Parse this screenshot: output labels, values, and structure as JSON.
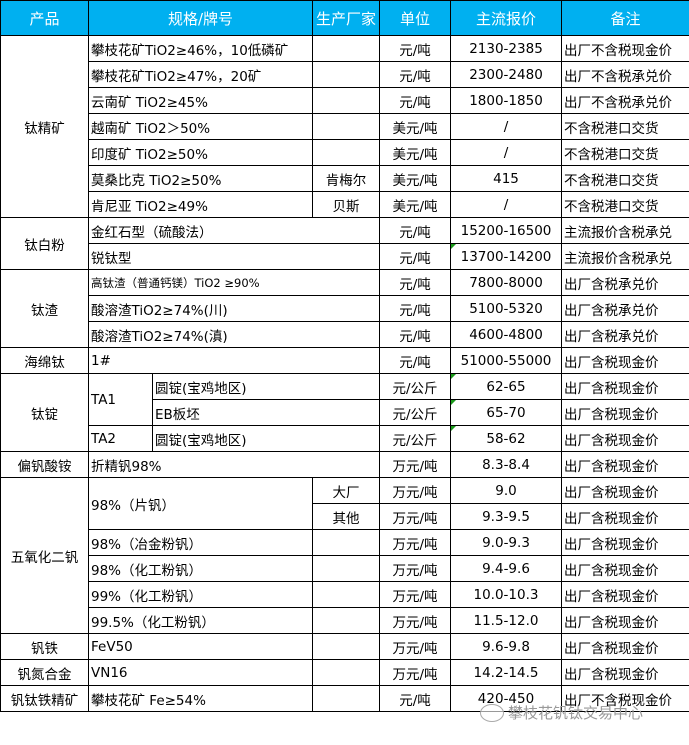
{
  "header": [
    "产品",
    "规格/牌号",
    "生产厂家",
    "单位",
    "主流报价",
    "备注"
  ],
  "groups": [
    {
      "product": "钛精矿",
      "layout": "spec2",
      "rows": [
        {
          "spec": "攀枝花矿TiO2≥46%，10低磷矿",
          "maker": "",
          "unit": "元/吨",
          "price": "2130-2385",
          "note": "出厂不含税现金价"
        },
        {
          "spec": "攀枝花矿TiO2≥47%，20矿",
          "maker": "",
          "unit": "元/吨",
          "price": "2300-2480",
          "note": "出厂不含税承兑价"
        },
        {
          "spec": "云南矿 TiO2≥45%",
          "maker": "",
          "unit": "元/吨",
          "price": "1800-1850",
          "note": "出厂不含税承兑价"
        },
        {
          "spec": "越南矿 TiO2＞50%",
          "maker": "",
          "unit": "美元/吨",
          "price": "/",
          "note": "不含税港口交货"
        },
        {
          "spec": "印度矿 TiO2≥50%",
          "maker": "",
          "unit": "美元/吨",
          "price": "/",
          "note": "不含税港口交货"
        },
        {
          "spec": "莫桑比克 TiO2≥50%",
          "maker": "肯梅尔",
          "unit": "美元/吨",
          "price": "415",
          "note": "不含税港口交货"
        },
        {
          "spec": "肯尼亚 TiO2≥49%",
          "maker": "贝斯",
          "unit": "美元/吨",
          "price": "/",
          "note": "不含税港口交货"
        }
      ]
    },
    {
      "product": "钛白粉",
      "layout": "spec3",
      "rows": [
        {
          "spec": "金红石型（硫酸法）",
          "unit": "元/吨",
          "price": "15200-16500",
          "note": "主流报价含税承兑"
        },
        {
          "spec": "锐钛型",
          "unit": "元/吨",
          "price": "13700-14200",
          "note": "主流报价含税承兑",
          "flag": true
        }
      ]
    },
    {
      "product": "钛渣",
      "layout": "spec3",
      "rows": [
        {
          "spec": "高钛渣（普通钙镁）TiO2 ≥90%",
          "small": true,
          "unit": "元/吨",
          "price": "7800-8000",
          "note": "出厂含税承兑价"
        },
        {
          "spec": "酸溶渣TiO2≥74%(川)",
          "unit": "元/吨",
          "price": "5100-5320",
          "note": "出厂含税承兑价"
        },
        {
          "spec": "酸溶渣TiO2≥74%(滇)",
          "unit": "元/吨",
          "price": "4600-4800",
          "note": "出厂含税承兑价"
        }
      ]
    },
    {
      "product": "海绵钛",
      "layout": "spec3",
      "rows": [
        {
          "spec": "1#",
          "unit": "元/吨",
          "price": "51000-55000",
          "note": "出厂含税现金价"
        }
      ]
    },
    {
      "product": "钛锭",
      "layout": "ingot",
      "rows": [
        {
          "grade": "TA1",
          "grade_span": 2,
          "spec": "圆锭(宝鸡地区)",
          "unit": "元/公斤",
          "price": "62-65",
          "note": "出厂含税现金价",
          "flag": true
        },
        {
          "spec": "EB板坯",
          "unit": "元/公斤",
          "price": "65-70",
          "note": "出厂含税现金价",
          "flag": true
        },
        {
          "grade": "TA2",
          "grade_span": 1,
          "spec": "圆锭(宝鸡地区)",
          "unit": "元/公斤",
          "price": "58-62",
          "note": "出厂含税现金价",
          "flag": true
        }
      ]
    },
    {
      "product": "偏钒酸铵",
      "layout": "spec3",
      "rows": [
        {
          "spec": "折精钒98%",
          "unit": "万元/吨",
          "price": "8.3-8.4",
          "note": "出厂含税现金价"
        }
      ]
    },
    {
      "product": "五氧化二钒",
      "layout": "spec2",
      "rows": [
        {
          "spec": "98%（片钒）",
          "spec_span": 2,
          "maker": "大厂",
          "unit": "万元/吨",
          "price": "9.0",
          "note": "出厂含税现金价"
        },
        {
          "maker": "其他",
          "unit": "万元/吨",
          "price": "9.3-9.5",
          "note": "出厂含税现金价"
        },
        {
          "spec": "98%（冶金粉钒）",
          "maker": "",
          "unit": "万元/吨",
          "price": "9.0-9.3",
          "note": "出厂含税现金价"
        },
        {
          "spec": "98%（化工粉钒）",
          "maker": "",
          "unit": "万元/吨",
          "price": "9.4-9.6",
          "note": "出厂含税现金价"
        },
        {
          "spec": "99%（化工粉钒）",
          "maker": "",
          "unit": "万元/吨",
          "price": "10.0-10.3",
          "note": "出厂含税现金价"
        },
        {
          "spec": "99.5%（化工粉钒）",
          "maker": "",
          "unit": "万元/吨",
          "price": "11.5-12.0",
          "note": "出厂含税现金价"
        }
      ]
    },
    {
      "product": "钒铁",
      "layout": "spec2",
      "rows": [
        {
          "spec": "FeV50",
          "maker": "",
          "unit": "万元/吨",
          "price": "9.6-9.8",
          "note": "出厂含税现金价"
        }
      ]
    },
    {
      "product": "钒氮合金",
      "layout": "spec2",
      "rows": [
        {
          "spec": "VN16",
          "maker": "",
          "unit": "万元/吨",
          "price": "14.2-14.5",
          "note": "出厂含税现金价"
        }
      ]
    },
    {
      "product": "钒钛铁精矿",
      "layout": "spec2",
      "rows": [
        {
          "spec": "攀枝花矿 Fe≥54%",
          "maker": "",
          "unit": "元/吨",
          "price": "420-450",
          "note": "出厂不含税现金价"
        }
      ]
    }
  ],
  "watermark": {
    "text": "攀枝花钒钛交易中心",
    "icon": "wechat-icon"
  },
  "colors": {
    "header_bg": "#00B0F0",
    "header_text": "#FFFFFF",
    "comment_flag": "#1A9A1A"
  }
}
